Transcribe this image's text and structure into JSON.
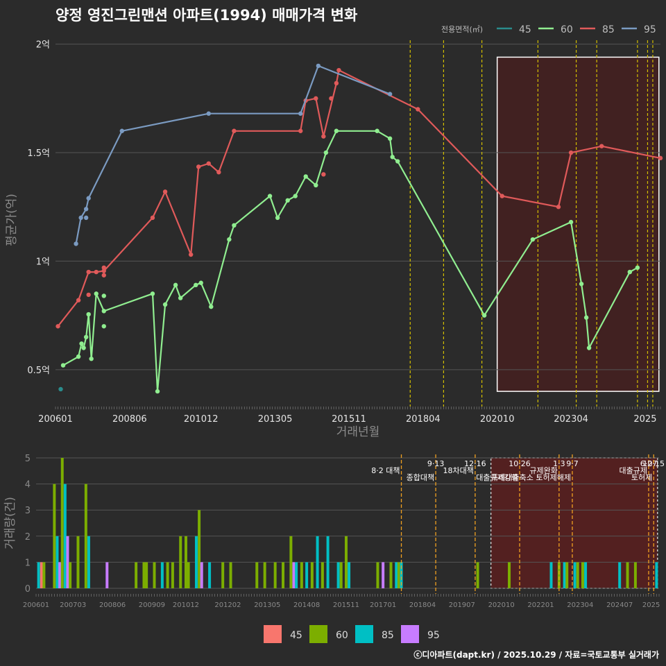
{
  "chart_data": [
    {
      "type": "line",
      "title": "양정 영진그린맨션 아파트(1994) 매매가격 변화",
      "xlabel": "거래년월",
      "ylabel": "평균가(억)",
      "legend_title": "전용면적(㎡)",
      "y_unit": "억",
      "ylim": [
        0.33,
        2.05
      ],
      "xlim": [
        2006.0,
        2025.75
      ],
      "yticks": [
        {
          "v": 0.5,
          "label": "0.5억"
        },
        {
          "v": 1,
          "label": "1억"
        },
        {
          "v": 1.5,
          "label": "1.5억"
        },
        {
          "v": 2,
          "label": "2억"
        }
      ],
      "xticks": [
        {
          "v": 2006.0,
          "label": "200601"
        },
        {
          "v": 2008.42,
          "label": "200806"
        },
        {
          "v": 2010.75,
          "label": "201012"
        },
        {
          "v": 2013.17,
          "label": "201305"
        },
        {
          "v": 2015.58,
          "label": "201511"
        },
        {
          "v": 2018.0,
          "label": "201804"
        },
        {
          "v": 2020.42,
          "label": "202010"
        },
        {
          "v": 2022.83,
          "label": "202304"
        },
        {
          "v": 2025.25,
          "label": "2025"
        }
      ],
      "policy_lines": [
        2017.58,
        2018.67,
        2019.92,
        2021.75,
        2023.0,
        2023.67,
        2025.0,
        2025.33,
        2025.5
      ],
      "highlight_range": [
        2020.42,
        2025.7
      ],
      "series": [
        {
          "name": "45",
          "color": "#2a8c8c",
          "line": false,
          "points": [
            [
              2006.17,
              0.41
            ]
          ]
        },
        {
          "name": "60",
          "color": "#90ee90",
          "line": true,
          "points": [
            [
              2006.25,
              0.52
            ],
            [
              2006.75,
              0.56
            ],
            [
              2006.85,
              0.62
            ],
            [
              2006.92,
              0.6
            ],
            [
              2007.0,
              0.65
            ],
            [
              2007.08,
              0.755
            ],
            [
              2007.17,
              0.55
            ],
            [
              2007.33,
              0.85
            ],
            [
              2007.58,
              0.77
            ],
            [
              2009.17,
              0.85
            ],
            [
              2009.33,
              0.4
            ],
            [
              2009.58,
              0.8
            ],
            [
              2009.92,
              0.89
            ],
            [
              2010.08,
              0.83
            ],
            [
              2010.58,
              0.89
            ],
            [
              2010.75,
              0.9
            ],
            [
              2011.08,
              0.79
            ],
            [
              2011.67,
              1.1
            ],
            [
              2011.83,
              1.165
            ],
            [
              2013.0,
              1.3
            ],
            [
              2013.25,
              1.2
            ],
            [
              2013.58,
              1.28
            ],
            [
              2013.83,
              1.3
            ],
            [
              2014.17,
              1.39
            ],
            [
              2014.5,
              1.35
            ],
            [
              2014.83,
              1.5
            ],
            [
              2015.17,
              1.6
            ],
            [
              2016.5,
              1.6
            ],
            [
              2016.92,
              1.565
            ],
            [
              2017.0,
              1.48
            ],
            [
              2017.17,
              1.46
            ],
            [
              2020.0,
              0.75
            ],
            [
              2021.58,
              1.1
            ],
            [
              2022.83,
              1.18
            ],
            [
              2023.17,
              0.895
            ],
            [
              2023.33,
              0.74
            ],
            [
              2023.42,
              0.6
            ],
            [
              2024.75,
              0.95
            ],
            [
              2025.0,
              0.97
            ]
          ],
          "extra_points": [
            [
              2007.58,
              0.84
            ],
            [
              2007.58,
              0.7
            ]
          ]
        },
        {
          "name": "85",
          "color": "#e05a5a",
          "line": true,
          "points": [
            [
              2006.08,
              0.7
            ],
            [
              2006.75,
              0.82
            ],
            [
              2007.08,
              0.95
            ],
            [
              2007.33,
              0.95
            ],
            [
              2007.58,
              0.955
            ],
            [
              2009.17,
              1.2
            ],
            [
              2009.58,
              1.32
            ],
            [
              2010.42,
              1.03
            ],
            [
              2010.67,
              1.435
            ],
            [
              2011.0,
              1.45
            ],
            [
              2011.33,
              1.41
            ],
            [
              2011.83,
              1.6
            ],
            [
              2014.0,
              1.6
            ],
            [
              2014.17,
              1.74
            ],
            [
              2014.5,
              1.75
            ],
            [
              2014.75,
              1.575
            ],
            [
              2015.17,
              1.82
            ],
            [
              2015.25,
              1.88
            ],
            [
              2017.83,
              1.7
            ],
            [
              2020.58,
              1.3
            ],
            [
              2022.42,
              1.25
            ],
            [
              2022.83,
              1.5
            ],
            [
              2023.83,
              1.53
            ],
            [
              2025.75,
              1.475
            ]
          ],
          "extra_points": [
            [
              2007.08,
              0.845
            ],
            [
              2007.58,
              0.97
            ],
            [
              2007.58,
              0.935
            ],
            [
              2015.0,
              1.75
            ],
            [
              2014.75,
              1.4
            ]
          ]
        },
        {
          "name": "95",
          "color": "#7b9bc2",
          "line": true,
          "points": [
            [
              2006.67,
              1.08
            ],
            [
              2006.83,
              1.2
            ],
            [
              2007.0,
              1.24
            ],
            [
              2007.08,
              1.29
            ],
            [
              2008.17,
              1.6
            ],
            [
              2011.0,
              1.68
            ],
            [
              2014.0,
              1.68
            ],
            [
              2014.58,
              1.9
            ],
            [
              2016.92,
              1.77
            ]
          ],
          "extra_points": [
            [
              2007.0,
              1.2
            ]
          ]
        }
      ]
    },
    {
      "type": "bar",
      "title": "",
      "xlabel": "",
      "ylabel": "거래량(건)",
      "ylim": [
        0,
        5
      ],
      "xlim": [
        2006.0,
        2025.75
      ],
      "yticks": [
        0,
        1,
        2,
        3,
        4,
        5
      ],
      "xticks": [
        {
          "v": 2006.0,
          "label": "200601"
        },
        {
          "v": 2007.17,
          "label": "200703"
        },
        {
          "v": 2008.42,
          "label": "200806"
        },
        {
          "v": 2009.67,
          "label": "200909"
        },
        {
          "v": 2010.75,
          "label": "201012"
        },
        {
          "v": 2012.08,
          "label": "201202"
        },
        {
          "v": 2013.33,
          "label": "201305"
        },
        {
          "v": 2014.58,
          "label": "201408"
        },
        {
          "v": 2015.83,
          "label": "201511"
        },
        {
          "v": 2017.0,
          "label": "201701"
        },
        {
          "v": 2018.25,
          "label": "201804"
        },
        {
          "v": 2019.5,
          "label": "201907"
        },
        {
          "v": 2020.75,
          "label": "202010"
        },
        {
          "v": 2022.0,
          "label": "202201"
        },
        {
          "v": 2023.25,
          "label": "202304"
        },
        {
          "v": 2024.5,
          "label": "202407"
        },
        {
          "v": 2025.5,
          "label": "2025"
        }
      ],
      "legend": [
        {
          "name": "45",
          "color": "#f8766d"
        },
        {
          "name": "60",
          "color": "#7cae00"
        },
        {
          "name": "85",
          "color": "#00bfc4"
        },
        {
          "name": "95",
          "color": "#c77cff"
        }
      ],
      "highlight_range": [
        2020.42,
        2025.7
      ],
      "policy_lines": [
        {
          "x": 2017.58,
          "date": "",
          "label": "8·2 대책"
        },
        {
          "x": 2018.67,
          "date": "9·13",
          "label": "종합대책"
        },
        {
          "x": 2019.92,
          "date": "12·16",
          "label": "18차대책"
        },
        {
          "x": 2021.33,
          "date": "10·26",
          "label": "대출규제강화"
        },
        {
          "x": 2022.58,
          "date": "1·3",
          "label": "규제완화"
        },
        {
          "x": 2023.0,
          "date": "9·7",
          "label": "특례대출축소 토허제해제"
        },
        {
          "x": 2025.42,
          "date": "6·27",
          "label": "대출규제"
        },
        {
          "x": 2025.58,
          "date": "10·15",
          "label": "토허제"
        }
      ],
      "bars": [
        {
          "x": 2006.08,
          "s": "85",
          "v": 1
        },
        {
          "x": 2006.17,
          "s": "45",
          "v": 1
        },
        {
          "x": 2006.25,
          "s": "60",
          "v": 1
        },
        {
          "x": 2006.58,
          "s": "60",
          "v": 4
        },
        {
          "x": 2006.67,
          "s": "85",
          "v": 2
        },
        {
          "x": 2006.75,
          "s": "95",
          "v": 1
        },
        {
          "x": 2006.83,
          "s": "60",
          "v": 5
        },
        {
          "x": 2006.92,
          "s": "85",
          "v": 4
        },
        {
          "x": 2007.0,
          "s": "95",
          "v": 2
        },
        {
          "x": 2007.08,
          "s": "60",
          "v": 1
        },
        {
          "x": 2007.33,
          "s": "60",
          "v": 2
        },
        {
          "x": 2007.58,
          "s": "60",
          "v": 4
        },
        {
          "x": 2007.67,
          "s": "85",
          "v": 2
        },
        {
          "x": 2008.25,
          "s": "95",
          "v": 1
        },
        {
          "x": 2009.17,
          "s": "60",
          "v": 1
        },
        {
          "x": 2009.42,
          "s": "60",
          "v": 1
        },
        {
          "x": 2009.5,
          "s": "60",
          "v": 1
        },
        {
          "x": 2009.75,
          "s": "60",
          "v": 1
        },
        {
          "x": 2010.0,
          "s": "85",
          "v": 1
        },
        {
          "x": 2010.17,
          "s": "60",
          "v": 1
        },
        {
          "x": 2010.33,
          "s": "60",
          "v": 1
        },
        {
          "x": 2010.58,
          "s": "60",
          "v": 2
        },
        {
          "x": 2010.75,
          "s": "60",
          "v": 2
        },
        {
          "x": 2010.83,
          "s": "60",
          "v": 1
        },
        {
          "x": 2011.08,
          "s": "85",
          "v": 2
        },
        {
          "x": 2011.17,
          "s": "60",
          "v": 3
        },
        {
          "x": 2011.25,
          "s": "95",
          "v": 1
        },
        {
          "x": 2011.5,
          "s": "85",
          "v": 1
        },
        {
          "x": 2011.92,
          "s": "60",
          "v": 1
        },
        {
          "x": 2012.17,
          "s": "60",
          "v": 1
        },
        {
          "x": 2013.0,
          "s": "60",
          "v": 1
        },
        {
          "x": 2013.25,
          "s": "60",
          "v": 1
        },
        {
          "x": 2013.58,
          "s": "60",
          "v": 1
        },
        {
          "x": 2013.83,
          "s": "60",
          "v": 1
        },
        {
          "x": 2014.08,
          "s": "60",
          "v": 2
        },
        {
          "x": 2014.17,
          "s": "95",
          "v": 1
        },
        {
          "x": 2014.25,
          "s": "85",
          "v": 1
        },
        {
          "x": 2014.42,
          "s": "60",
          "v": 1
        },
        {
          "x": 2014.58,
          "s": "85",
          "v": 1
        },
        {
          "x": 2014.75,
          "s": "60",
          "v": 1
        },
        {
          "x": 2014.92,
          "s": "85",
          "v": 2
        },
        {
          "x": 2015.08,
          "s": "60",
          "v": 1
        },
        {
          "x": 2015.25,
          "s": "85",
          "v": 2
        },
        {
          "x": 2015.58,
          "s": "85",
          "v": 1
        },
        {
          "x": 2015.67,
          "s": "60",
          "v": 1
        },
        {
          "x": 2015.83,
          "s": "60",
          "v": 2
        },
        {
          "x": 2015.92,
          "s": "85",
          "v": 1
        },
        {
          "x": 2016.83,
          "s": "60",
          "v": 1
        },
        {
          "x": 2017.0,
          "s": "95",
          "v": 1
        },
        {
          "x": 2017.25,
          "s": "60",
          "v": 1
        },
        {
          "x": 2017.42,
          "s": "85",
          "v": 1
        },
        {
          "x": 2017.5,
          "s": "60",
          "v": 1
        },
        {
          "x": 2017.58,
          "s": "85",
          "v": 1
        },
        {
          "x": 2020.0,
          "s": "60",
          "v": 1
        },
        {
          "x": 2021.0,
          "s": "60",
          "v": 1
        },
        {
          "x": 2022.33,
          "s": "85",
          "v": 1
        },
        {
          "x": 2022.58,
          "s": "60",
          "v": 1
        },
        {
          "x": 2022.75,
          "s": "85",
          "v": 1
        },
        {
          "x": 2022.83,
          "s": "60",
          "v": 1
        },
        {
          "x": 2023.08,
          "s": "85",
          "v": 1
        },
        {
          "x": 2023.17,
          "s": "60",
          "v": 1
        },
        {
          "x": 2023.33,
          "s": "60",
          "v": 1
        },
        {
          "x": 2023.42,
          "s": "85",
          "v": 1
        },
        {
          "x": 2024.5,
          "s": "85",
          "v": 1
        },
        {
          "x": 2024.75,
          "s": "60",
          "v": 1
        },
        {
          "x": 2025.0,
          "s": "60",
          "v": 1
        },
        {
          "x": 2025.67,
          "s": "85",
          "v": 1
        }
      ]
    }
  ],
  "footer": "ⓒ디아파트(dapt.kr) / 2025.10.29 / 자료=국토교통부 실거래가"
}
